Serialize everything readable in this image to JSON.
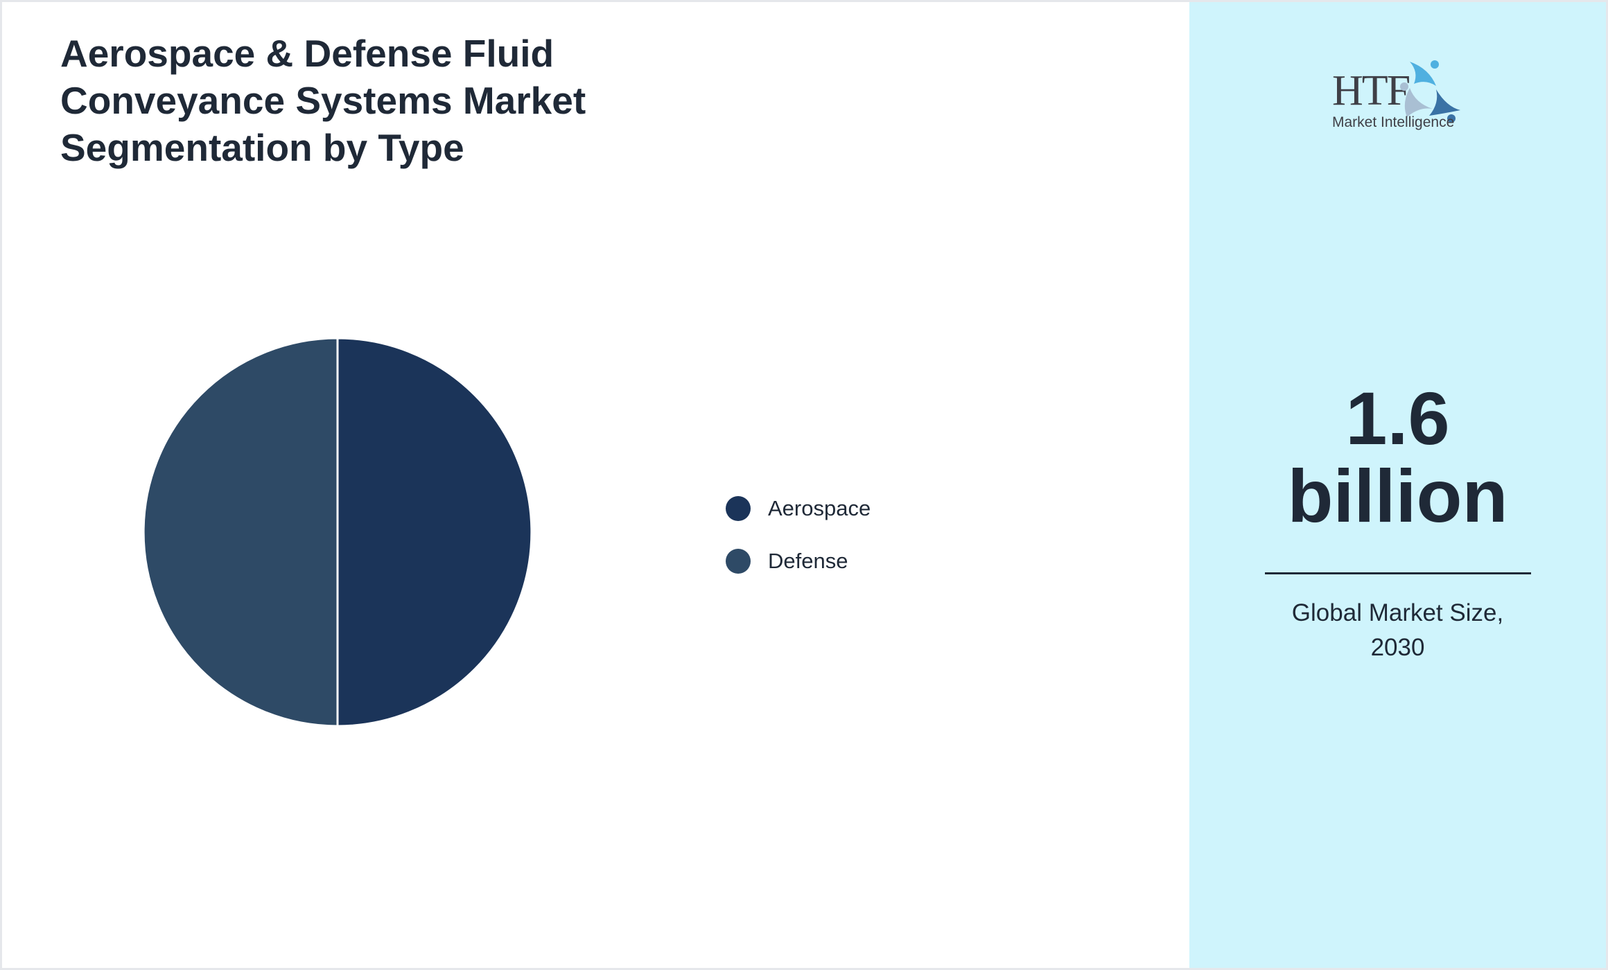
{
  "chart_data": {
    "type": "pie",
    "title": "Aerospace & Defense Fluid Conveyance Systems Market Segmentation by Type",
    "categories": [
      "Aerospace",
      "Defense"
    ],
    "values": [
      50,
      50
    ],
    "colors": [
      "#1b3459",
      "#2e4a66"
    ],
    "legend_position": "right"
  },
  "side": {
    "logo_text": "HTF",
    "logo_subtext": "Market Intelligence",
    "value_number": "1.6",
    "value_unit": "billion",
    "caption_line1": "Global Market Size,",
    "caption_line2": "2030",
    "background": "#cff4fc"
  }
}
